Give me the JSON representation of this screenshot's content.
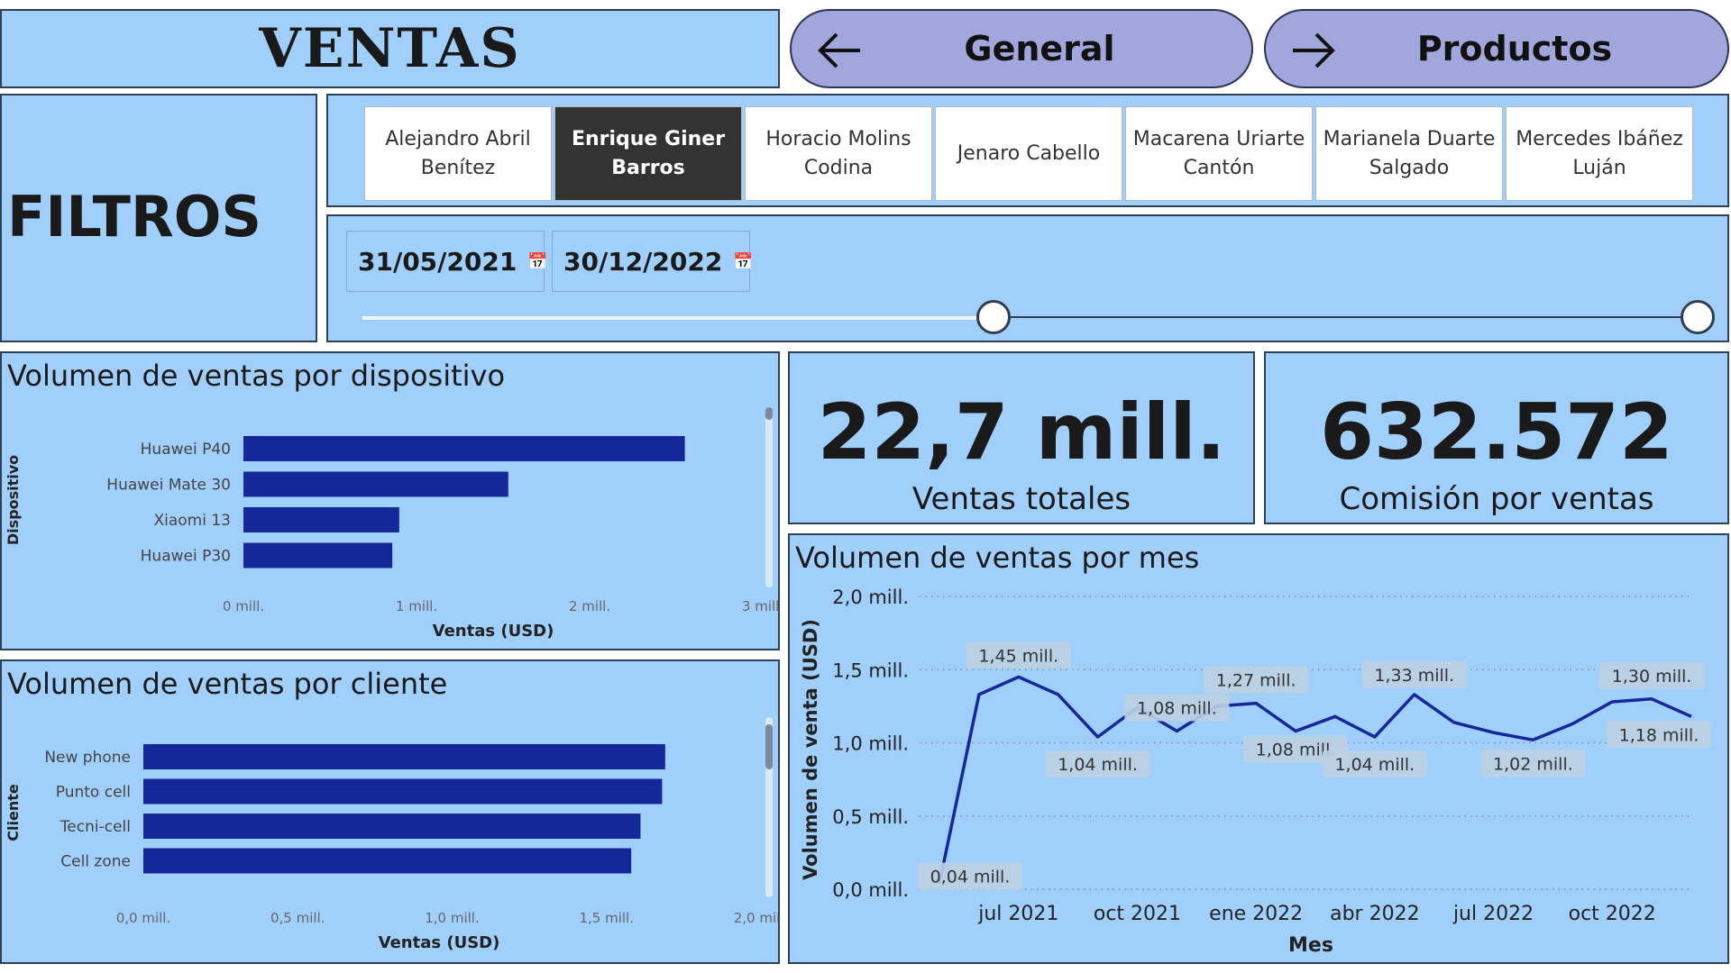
{
  "header": {
    "title": "VENTAS",
    "nav": [
      {
        "label": "General",
        "icon": "arrow-left-icon"
      },
      {
        "label": "Productos",
        "icon": "arrow-right-icon"
      }
    ]
  },
  "filters": {
    "title": "FILTROS",
    "people": [
      {
        "name": "Alejandro Abril Benítez",
        "selected": false
      },
      {
        "name": "Enrique Giner Barros",
        "selected": true
      },
      {
        "name": "Horacio Molins Codina",
        "selected": false
      },
      {
        "name": "Jenaro Cabello",
        "selected": false
      },
      {
        "name": "Macarena Uriarte Cantón",
        "selected": false
      },
      {
        "name": "Marianela Duarte Salgado",
        "selected": false
      },
      {
        "name": "Mercedes Ibáñez Luján",
        "selected": false
      }
    ],
    "date_start": "31/05/2021",
    "date_end": "30/12/2022",
    "calendar_icon": "calendar-icon"
  },
  "kpis": [
    {
      "value": "22,7 mill.",
      "label": "Ventas totales"
    },
    {
      "value": "632.572",
      "label": "Comisión por ventas"
    }
  ],
  "colors": {
    "panel_bg": "#a1cffb",
    "bar": "#14289a",
    "nav_bg": "#a1a7dc",
    "selected_bg": "#333333"
  },
  "chart_data": [
    {
      "type": "bar",
      "orientation": "horizontal",
      "title": "Volumen de ventas por dispositivo",
      "xlabel": "Ventas (USD)",
      "ylabel": "Dispositivo",
      "categories": [
        "Huawei P40",
        "Huawei Mate 30",
        "Xiaomi 13",
        "Huawei P30"
      ],
      "values": [
        2.55,
        1.53,
        0.9,
        0.86
      ],
      "xlim": [
        0,
        3
      ],
      "xticks": [
        "0 mill.",
        "1 mill.",
        "2 mill.",
        "3 mill."
      ]
    },
    {
      "type": "bar",
      "orientation": "horizontal",
      "title": "Volumen de ventas por cliente",
      "xlabel": "Ventas (USD)",
      "ylabel": "Cliente",
      "categories": [
        "New phone",
        "Punto cell",
        "Tecni-cell",
        "Cell zone"
      ],
      "values": [
        1.69,
        1.68,
        1.61,
        1.58
      ],
      "xlim": [
        0,
        2
      ],
      "xticks": [
        "0,0 mill.",
        "0,5 mill.",
        "1,0 mill.",
        "1,5 mill.",
        "2,0 mill."
      ]
    },
    {
      "type": "line",
      "title": "Volumen de ventas por mes",
      "xlabel": "Mes",
      "ylabel": "Volumen de venta (USD)",
      "ylim": [
        0,
        2
      ],
      "yticks": [
        "0,0 mill.",
        "0,5 mill.",
        "1,0 mill.",
        "1,5 mill.",
        "2,0 mill."
      ],
      "xticks": [
        "jul 2021",
        "oct 2021",
        "ene 2022",
        "abr 2022",
        "jul 2022",
        "oct 2022"
      ],
      "x": [
        "may 2021",
        "jun 2021",
        "jul 2021",
        "ago 2021",
        "sep 2021",
        "oct 2021",
        "nov 2021",
        "dic 2021",
        "ene 2022",
        "feb 2022",
        "mar 2022",
        "abr 2022",
        "may 2022",
        "jun 2022",
        "jul 2022",
        "ago 2022",
        "sep 2022",
        "oct 2022",
        "nov 2022",
        "dic 2022"
      ],
      "values": [
        0.04,
        1.33,
        1.45,
        1.33,
        1.04,
        1.24,
        1.08,
        1.25,
        1.27,
        1.08,
        1.18,
        1.04,
        1.33,
        1.14,
        1.07,
        1.02,
        1.13,
        1.28,
        1.3,
        1.18
      ],
      "data_labels": [
        {
          "i": 0,
          "text": "0,04 mill."
        },
        {
          "i": 2,
          "text": "1,45 mill."
        },
        {
          "i": 4,
          "text": "1,04 mill."
        },
        {
          "i": 6,
          "text": "1,08 mill."
        },
        {
          "i": 8,
          "text": "1,27 mill."
        },
        {
          "i": 9,
          "text": "1,08 mill."
        },
        {
          "i": 11,
          "text": "1,04 mill."
        },
        {
          "i": 12,
          "text": "1,33 mill."
        },
        {
          "i": 15,
          "text": "1,02 mill."
        },
        {
          "i": 18,
          "text": "1,30 mill."
        },
        {
          "i": 19,
          "text": "1,18 mill."
        }
      ]
    }
  ]
}
